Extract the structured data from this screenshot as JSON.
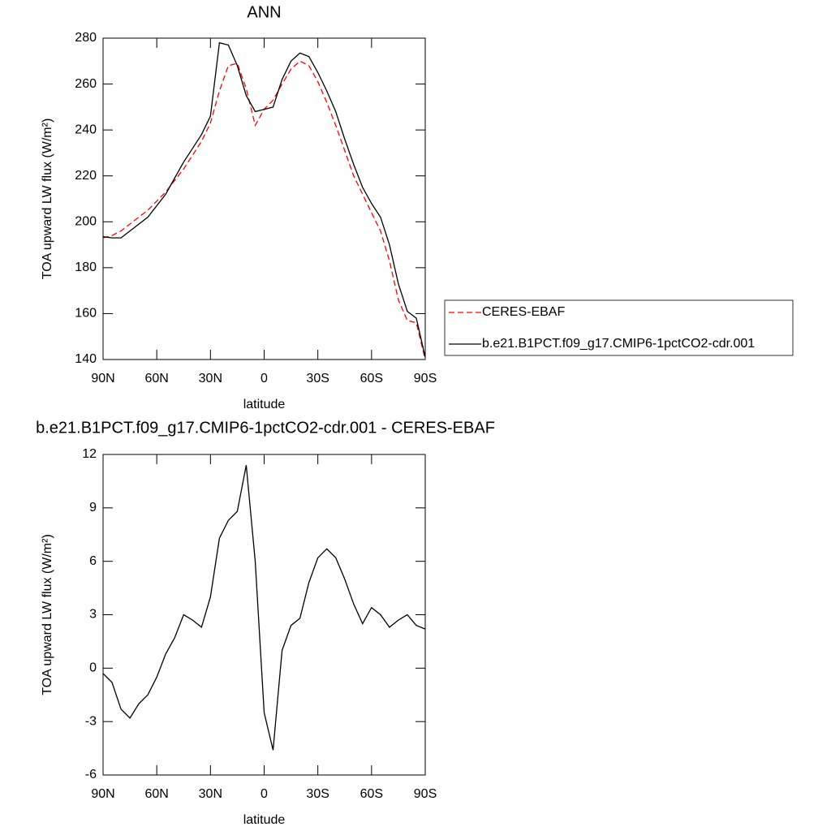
{
  "chart_data": [
    {
      "type": "line",
      "title": "ANN",
      "xlabel": "latitude",
      "ylabel": "TOA upward LW flux (W/m²)",
      "x": [
        90,
        85,
        80,
        75,
        70,
        65,
        60,
        55,
        50,
        45,
        40,
        35,
        30,
        25,
        20,
        15,
        10,
        5,
        0,
        -5,
        -10,
        -15,
        -20,
        -25,
        -30,
        -35,
        -40,
        -45,
        -50,
        -55,
        -60,
        -65,
        -70,
        -75,
        -80,
        -85,
        -90
      ],
      "series": [
        {
          "name": "CERES-EBAF",
          "color": "#ff0000",
          "dashed": true,
          "values": [
            193,
            194,
            196,
            199,
            202,
            205,
            209,
            213,
            218,
            223,
            229,
            235,
            243,
            257,
            268,
            269,
            258,
            242,
            249,
            253,
            260,
            266.5,
            270,
            268,
            261,
            252,
            242,
            231,
            220,
            212,
            204,
            196,
            183,
            166,
            157,
            156,
            140
          ]
        },
        {
          "name": "b.e21.B1PCT.f09_g17.CMIP6-1pctCO2-cdr.001",
          "color": "#000000",
          "dashed": false,
          "values": [
            193.5,
            193,
            193,
            196,
            199,
            202,
            207,
            212,
            219,
            226,
            232,
            238,
            246,
            278,
            277,
            268,
            255,
            248,
            249,
            250,
            262,
            270,
            273.5,
            272,
            265,
            257,
            248,
            236,
            225,
            215,
            208,
            202,
            190,
            173,
            161,
            158,
            141
          ]
        }
      ],
      "xlim": [
        90,
        -90
      ],
      "xticks": [
        {
          "value": 90,
          "label": "90N"
        },
        {
          "value": 60,
          "label": "60N"
        },
        {
          "value": 30,
          "label": "30N"
        },
        0,
        {
          "value": -30,
          "label": "30S"
        },
        {
          "value": -60,
          "label": "60S"
        },
        {
          "value": -90,
          "label": "90S"
        }
      ],
      "ylim": [
        140,
        280
      ],
      "yticks": [
        140,
        160,
        180,
        200,
        220,
        240,
        260,
        280
      ],
      "legend": "right"
    },
    {
      "type": "line",
      "title": "b.e21.B1PCT.f09_g17.CMIP6-1pctCO2-cdr.001 - CERES-EBAF",
      "xlabel": "latitude",
      "ylabel": "TOA upward LW flux (W/m²)",
      "x": [
        90,
        85,
        80,
        75,
        70,
        65,
        60,
        55,
        50,
        45,
        40,
        35,
        30,
        25,
        20,
        15,
        10,
        5,
        0,
        -5,
        -10,
        -15,
        -20,
        -25,
        -30,
        -35,
        -40,
        -45,
        -50,
        -55,
        -60,
        -65,
        -70,
        -75,
        -80,
        -85,
        -90
      ],
      "color": "#000000",
      "values": [
        -0.3,
        -0.8,
        -2.3,
        -2.8,
        -2.0,
        -1.5,
        -0.5,
        0.8,
        1.7,
        3.0,
        2.7,
        2.3,
        4.0,
        7.3,
        8.3,
        8.8,
        11.4,
        6.0,
        -2.5,
        -4.6,
        1.0,
        2.4,
        2.8,
        4.8,
        6.2,
        6.7,
        6.2,
        5.0,
        3.6,
        2.5,
        3.4,
        3.0,
        2.3,
        2.7,
        3.0,
        2.4,
        2.2
      ],
      "xlim": [
        90,
        -90
      ],
      "xticks": [
        {
          "value": 90,
          "label": "90N"
        },
        {
          "value": 60,
          "label": "60N"
        },
        {
          "value": 30,
          "label": "30N"
        },
        0,
        {
          "value": -30,
          "label": "30S"
        },
        {
          "value": -60,
          "label": "60S"
        },
        {
          "value": -90,
          "label": "90S"
        }
      ],
      "ylim": [
        -6,
        12
      ],
      "yticks": [
        -6,
        -3,
        0,
        3,
        6,
        9,
        12
      ]
    }
  ]
}
